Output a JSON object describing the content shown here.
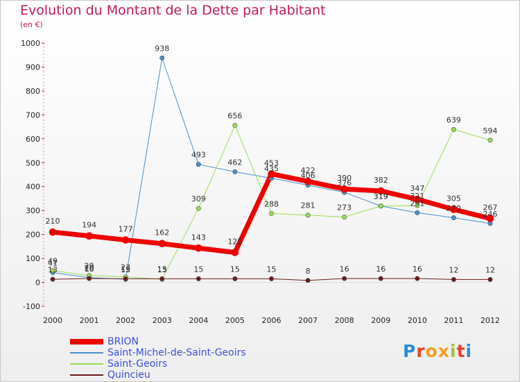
{
  "chart_data": {
    "type": "line",
    "title": "Evolution du Montant de la Dette par Habitant",
    "unit": "(en €)",
    "xlabel": "",
    "ylabel": "",
    "ylim": [
      -100,
      1000
    ],
    "yticks": [
      -100,
      0,
      100,
      200,
      300,
      400,
      500,
      600,
      700,
      800,
      900,
      1000
    ],
    "categories": [
      "2000",
      "2001",
      "2002",
      "2003",
      "2004",
      "2005",
      "2006",
      "2007",
      "2008",
      "2009",
      "2010",
      "2011",
      "2012"
    ],
    "series": [
      {
        "name": "Saint-Michel-de-Saint-Geoirs",
        "color": "#4a90c8",
        "width": 1,
        "values": [
          41,
          20,
          13,
          938,
          493,
          462,
          435,
          406,
          376,
          319,
          291,
          270,
          246
        ]
      },
      {
        "name": "Saint-Geoirs",
        "color": "#99dd55",
        "width": 1,
        "values": [
          49,
          29,
          23,
          13,
          309,
          656,
          288,
          281,
          273,
          319,
          321,
          639,
          594
        ]
      },
      {
        "name": "Quincieu",
        "color": "#6b1b1b",
        "width": 1,
        "values": [
          13,
          16,
          15,
          15,
          15,
          15,
          15,
          8,
          16,
          16,
          16,
          12,
          12
        ]
      },
      {
        "name": "BRION",
        "color": "#ee0000",
        "width": 7,
        "values": [
          210,
          194,
          177,
          162,
          143,
          125,
          453,
          422,
          390,
          382,
          347,
          305,
          267
        ]
      }
    ],
    "labels": {
      "BRION": [
        "210",
        "194",
        "177",
        "162",
        "143",
        "125",
        "453",
        "422",
        "390",
        "382",
        "347",
        "305",
        "267"
      ],
      "Saint-Michel-de-Saint-Geoirs": [
        "41",
        "20",
        "13",
        "938",
        "493",
        "462",
        "435",
        "406",
        "376",
        "319",
        "291",
        "270",
        "246"
      ],
      "Saint-Geoirs": [
        "49",
        "29",
        "23",
        "13",
        "309",
        "656",
        "288",
        "281",
        "273",
        "319",
        "321",
        "639",
        "594"
      ],
      "Quincieu": [
        "13",
        "16",
        "15",
        "15",
        "15",
        "15",
        "15",
        "8",
        "16",
        "16",
        "16",
        "12",
        "12"
      ]
    }
  },
  "legend": [
    {
      "name": "BRION",
      "color": "#ee0000"
    },
    {
      "name": "Saint-Michel-de-Saint-Geoirs",
      "color": "#4a90c8"
    },
    {
      "name": "Saint-Geoirs",
      "color": "#99dd55"
    },
    {
      "name": "Quincieu",
      "color": "#6b1b1b"
    }
  ],
  "logo": {
    "text": "Proxiti",
    "colors": [
      "#2e8bd8",
      "#e8432d",
      "#f0a020",
      "#f0a020",
      "#9ac43a",
      "#e8432d",
      "#2e8bd8"
    ]
  }
}
